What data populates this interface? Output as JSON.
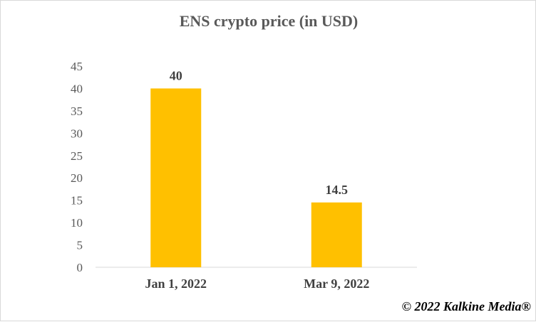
{
  "chart_data": {
    "type": "bar",
    "title": "ENS crypto price (in USD)",
    "xlabel": "",
    "ylabel": "",
    "categories": [
      "Jan 1, 2022",
      "Mar 9, 2022"
    ],
    "values": [
      40,
      14.5
    ],
    "data_labels": [
      "40",
      "14.5"
    ],
    "ylim": [
      0,
      45
    ],
    "yticks": [
      0,
      5,
      10,
      15,
      20,
      25,
      30,
      35,
      40,
      45
    ],
    "grid": false,
    "legend": "none",
    "bar_color": "#FFC000"
  },
  "footer": {
    "copyright": "© 2022 Kalkine Media®"
  }
}
